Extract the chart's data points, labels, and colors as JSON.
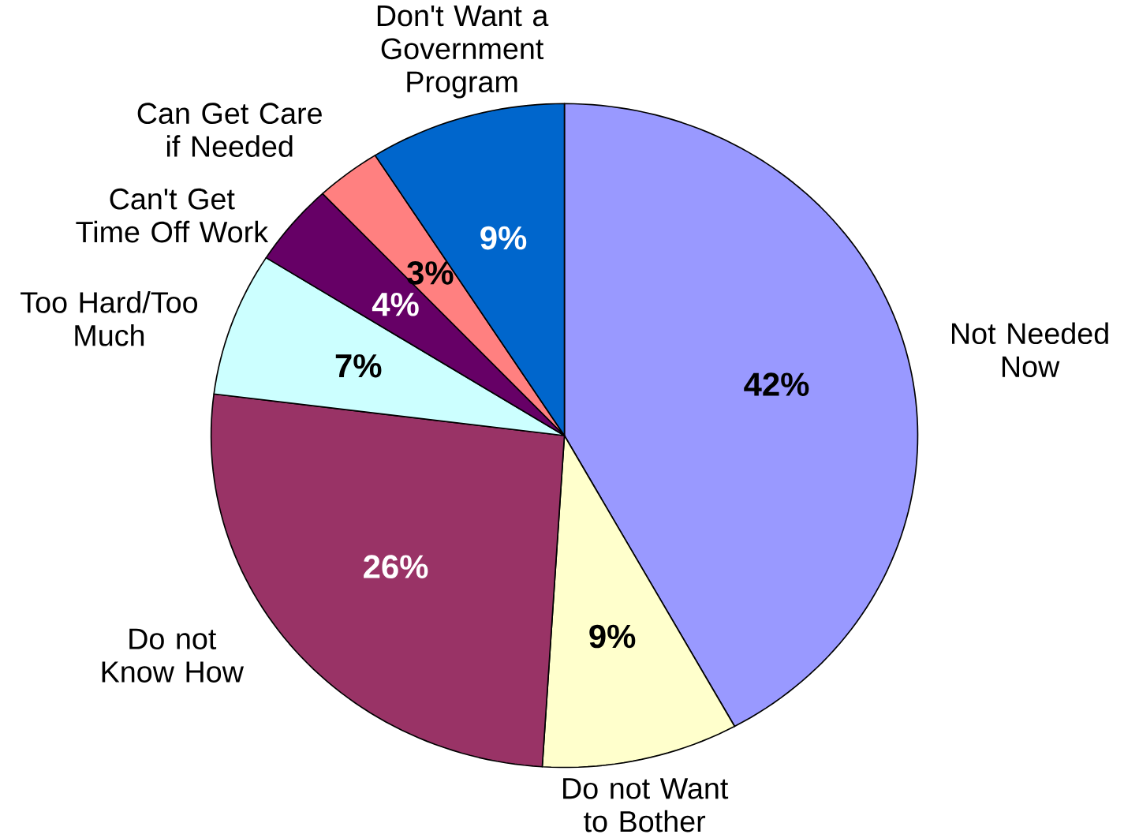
{
  "chart_data": {
    "type": "pie",
    "categories": [
      "Not Needed Now",
      "Do not Want to Bother",
      "Do not Know How",
      "Too Hard/Too Much",
      "Can't Get Time Off Work",
      "Can Get Care if Needed",
      "Don't Want a Government Program"
    ],
    "values": [
      42,
      9,
      26,
      7,
      4,
      3,
      9
    ],
    "value_labels": [
      "42%",
      "9%",
      "26%",
      "7%",
      "4%",
      "3%",
      "9%"
    ],
    "colors": [
      "#9999ff",
      "#ffffcc",
      "#993366",
      "#ccffff",
      "#660066",
      "#ff8080",
      "#0066cc"
    ]
  }
}
